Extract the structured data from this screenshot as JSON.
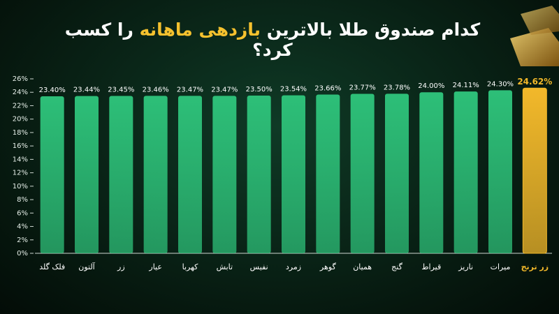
{
  "chart_data": {
    "type": "bar",
    "title_parts": [
      "کدام صندوق طلا بالاترین",
      "بازدهی ماهانه",
      "را کسب کرد؟"
    ],
    "categories": [
      "فلک گلد",
      "آلتون",
      "زر",
      "عیار",
      "کهربا",
      "تابش",
      "نفیس",
      "زمرد",
      "گوهر",
      "همیان",
      "گنج",
      "قیراط",
      "ناریز",
      "میرات",
      "زر ترنج"
    ],
    "values": [
      23.4,
      23.44,
      23.45,
      23.46,
      23.47,
      23.47,
      23.5,
      23.54,
      23.66,
      23.77,
      23.78,
      24.0,
      24.11,
      24.3,
      24.62
    ],
    "value_labels": [
      "23.40%",
      "23.44%",
      "23.45%",
      "23.46%",
      "23.47%",
      "23.47%",
      "23.50%",
      "23.54%",
      "23.66%",
      "23.77%",
      "23.78%",
      "24.00%",
      "24.11%",
      "24.30%",
      "24.62%"
    ],
    "colors": [
      "#2dbf78",
      "#2dbf78",
      "#2dbf78",
      "#2dbf78",
      "#2dbf78",
      "#2dbf78",
      "#2dbf78",
      "#2dbf78",
      "#2dbf78",
      "#2dbf78",
      "#2dbf78",
      "#2dbf78",
      "#2dbf78",
      "#2dbf78",
      "#f2b82a"
    ],
    "ylim": [
      0,
      26
    ],
    "yticks": [
      {
        "value": 0,
        "label": "0%"
      },
      {
        "value": 2,
        "label": "2%"
      },
      {
        "value": 4,
        "label": "4%"
      },
      {
        "value": 6,
        "label": "6%"
      },
      {
        "value": 8,
        "label": "8%"
      },
      {
        "value": 10,
        "label": "10%"
      },
      {
        "value": 12,
        "label": "12%"
      },
      {
        "value": 14,
        "label": "14%"
      },
      {
        "value": 16,
        "label": "16%"
      },
      {
        "value": 18,
        "label": "18%"
      },
      {
        "value": 20,
        "label": "20%"
      },
      {
        "value": 22,
        "label": "22%"
      },
      {
        "value": 24,
        "label": "24%"
      },
      {
        "value": 26,
        "label": "26%"
      }
    ]
  }
}
